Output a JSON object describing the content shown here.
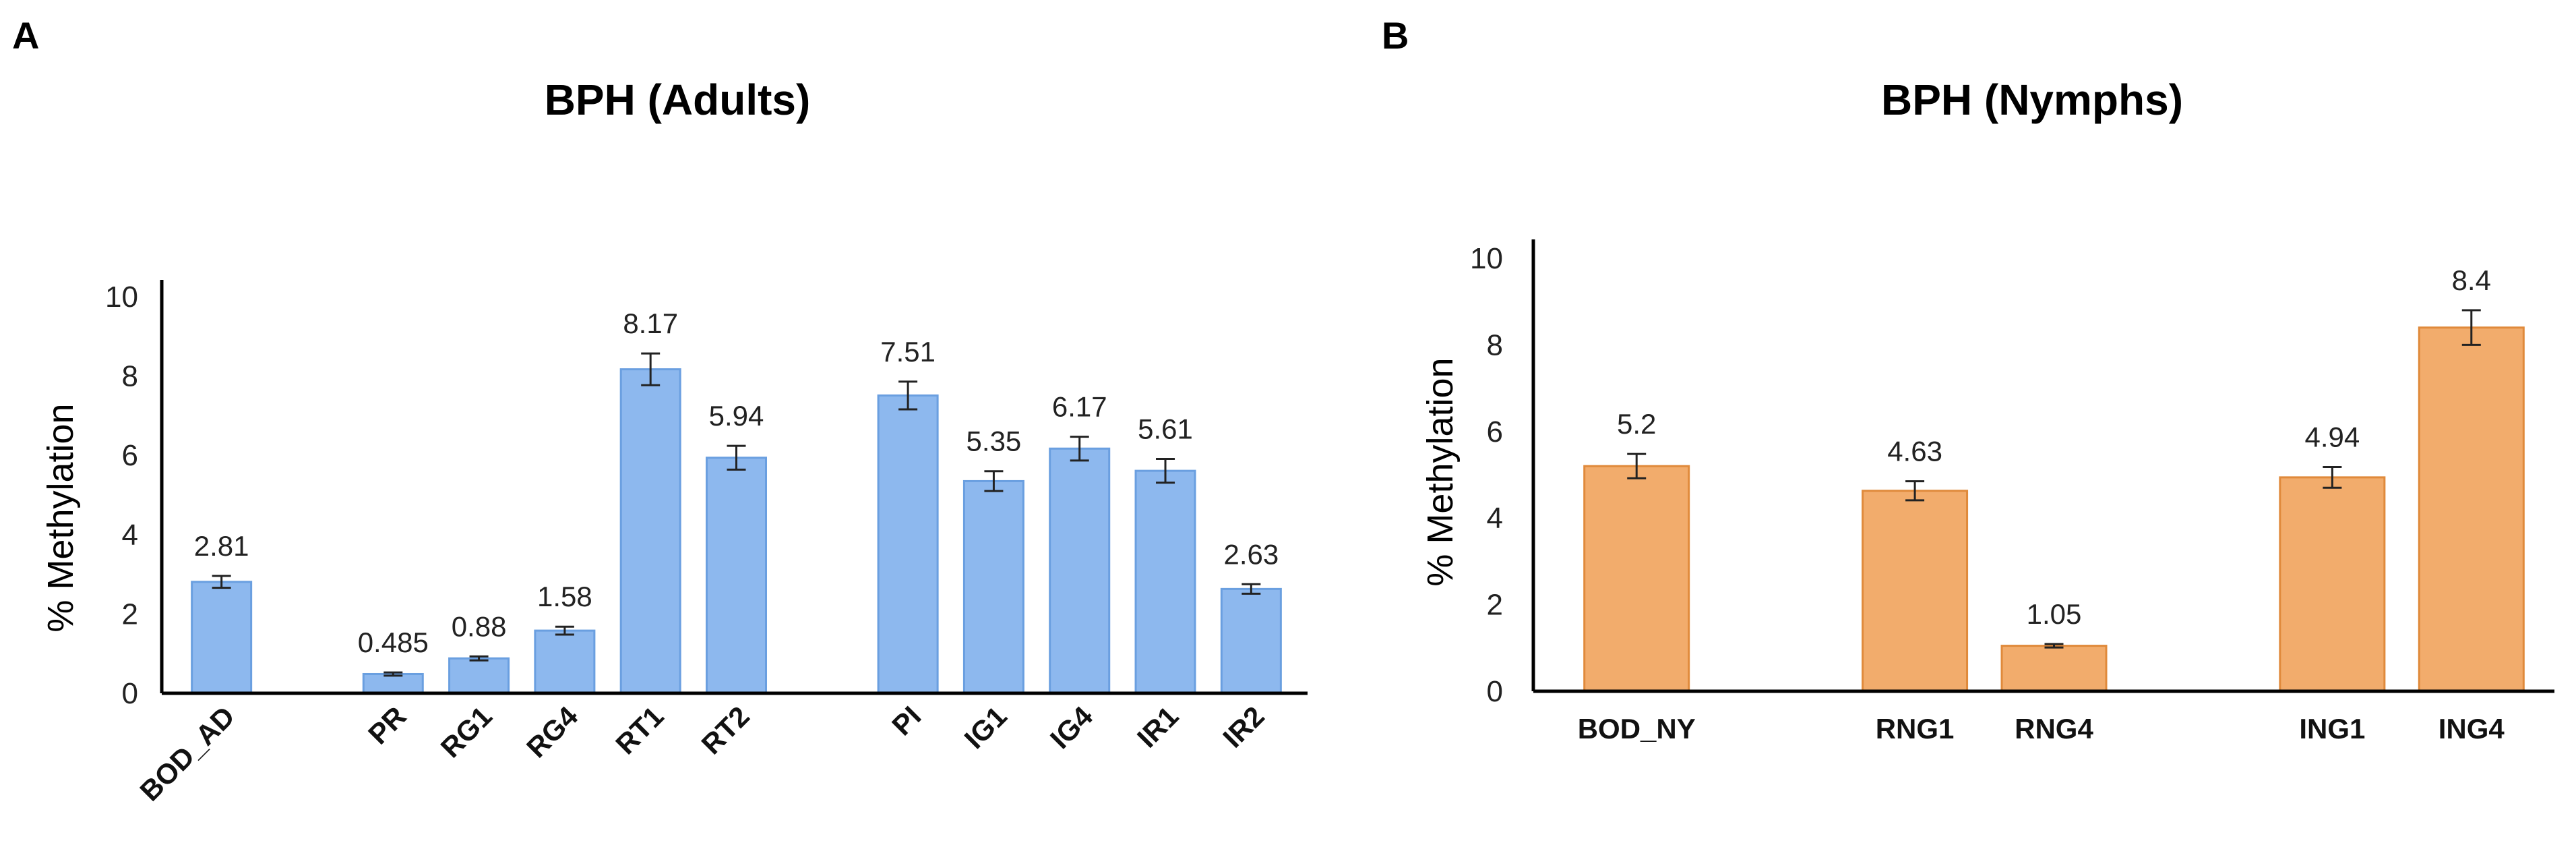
{
  "chart_data": [
    {
      "type": "bar",
      "panel": "A",
      "title": "BPH (Adults)",
      "xlabel": "",
      "ylabel": "% Methylation",
      "ylim": [
        0,
        10
      ],
      "yticks": [
        "0",
        "2",
        "4",
        "6",
        "8",
        "10"
      ],
      "bar_color": "#8db8ee",
      "bar_edge": "#6a9fe0",
      "categories": [
        "BOD_AD",
        "PR",
        "RG1",
        "RG4",
        "RT1",
        "RT2",
        "PI",
        "IG1",
        "IG4",
        "IR1",
        "IR2"
      ],
      "values": [
        2.81,
        0.485,
        0.88,
        1.58,
        8.17,
        5.94,
        7.51,
        5.35,
        6.17,
        5.61,
        2.63
      ],
      "labels": [
        "2.81",
        "0.485",
        "0.88",
        "1.58",
        "8.17",
        "5.94",
        "7.51",
        "5.35",
        "6.17",
        "5.61",
        "2.63"
      ],
      "errors": [
        0.15,
        0.04,
        0.05,
        0.1,
        0.4,
        0.3,
        0.35,
        0.25,
        0.3,
        0.3,
        0.12
      ],
      "slots": [
        0,
        2,
        3,
        4,
        5,
        6,
        8,
        9,
        10,
        11,
        12
      ],
      "nslots": 13,
      "x_label_rotation": "diagonal"
    },
    {
      "type": "bar",
      "panel": "B",
      "title": "BPH (Nymphs)",
      "xlabel": "",
      "ylabel": "% Methylation",
      "ylim": [
        0,
        10
      ],
      "yticks": [
        "0",
        "2",
        "4",
        "6",
        "8",
        "10"
      ],
      "bar_color": "#f2ac6c",
      "bar_edge": "#e08a3b",
      "categories": [
        "BOD_NY",
        "RNG1",
        "RNG4",
        "ING1",
        "ING4"
      ],
      "values": [
        5.2,
        4.63,
        1.05,
        4.94,
        8.4
      ],
      "labels": [
        "5.2",
        "4.63",
        "1.05",
        "4.94",
        "8.4"
      ],
      "errors": [
        0.28,
        0.22,
        0.04,
        0.24,
        0.4
      ],
      "slots": [
        0,
        2,
        3,
        5,
        6
      ],
      "nslots": 7,
      "x_label_rotation": "horizontal"
    }
  ]
}
